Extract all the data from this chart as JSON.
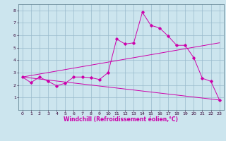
{
  "background_color": "#cce5ee",
  "grid_color": "#99bbcc",
  "line_color": "#cc00aa",
  "xlim": [
    -0.5,
    23.5
  ],
  "ylim": [
    0,
    8.5
  ],
  "xticks": [
    0,
    1,
    2,
    3,
    4,
    5,
    6,
    7,
    8,
    9,
    10,
    11,
    12,
    13,
    14,
    15,
    16,
    17,
    18,
    19,
    20,
    21,
    22,
    23
  ],
  "yticks": [
    1,
    2,
    3,
    4,
    5,
    6,
    7,
    8
  ],
  "xlabel": "Windchill (Refroidissement éolien,°C)",
  "line1_x": [
    0,
    1,
    2,
    3,
    4,
    5,
    6,
    7,
    8,
    9,
    10,
    11,
    12,
    13,
    14,
    15,
    16,
    17,
    18,
    19,
    20,
    21,
    22,
    23
  ],
  "line1_y": [
    2.65,
    2.2,
    2.65,
    2.3,
    1.95,
    2.15,
    2.65,
    2.65,
    2.6,
    2.45,
    3.0,
    5.7,
    5.3,
    5.4,
    7.85,
    6.8,
    6.6,
    5.95,
    5.2,
    5.2,
    4.2,
    2.55,
    2.3,
    0.8
  ],
  "line2_x": [
    0,
    23
  ],
  "line2_y": [
    2.65,
    5.4
  ],
  "line3_x": [
    0,
    23
  ],
  "line3_y": [
    2.65,
    0.8
  ],
  "tick_fontsize": 4.5,
  "xlabel_fontsize": 5.5
}
